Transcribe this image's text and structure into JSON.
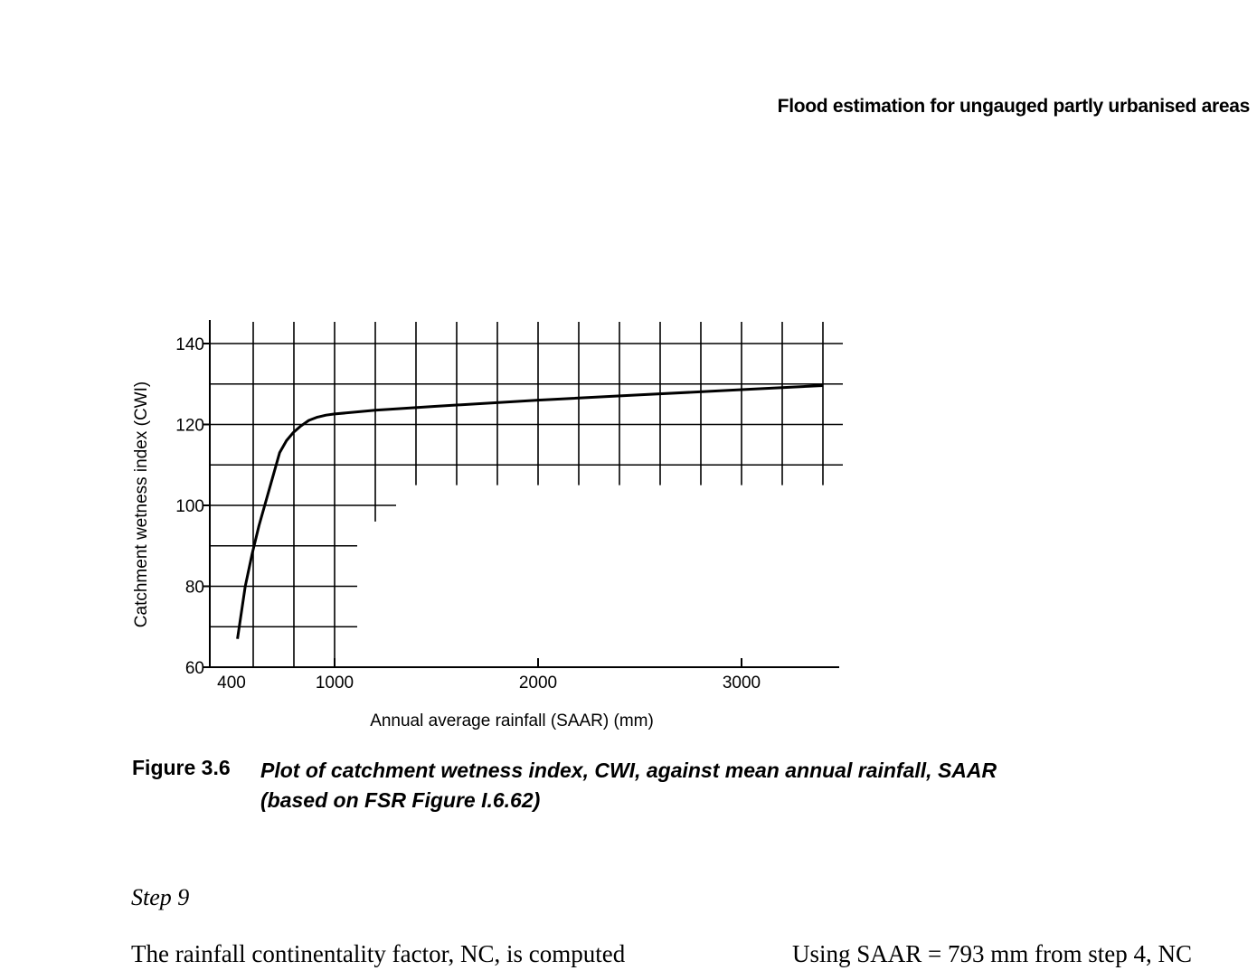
{
  "page": {
    "running_header": "Flood estimation for ungauged partly urbanised areas"
  },
  "figure": {
    "label": "Figure 3.6",
    "caption_line1": "Plot of catchment wetness index, CWI, against mean annual rainfall, SAAR",
    "caption_line2": "(based on FSR Figure I.6.62)"
  },
  "chart_data": {
    "type": "line",
    "title": "",
    "xlabel": "Annual average rainfall (SAAR) (mm)",
    "ylabel": "Catchment wetness index (CWI)",
    "xlim": [
      400,
      3500
    ],
    "ylim": [
      60,
      140
    ],
    "x_ticks": [
      400,
      1000,
      2000,
      3000
    ],
    "y_ticks": [
      60,
      80,
      100,
      120,
      140
    ],
    "grid": "on",
    "legend": "none",
    "series": [
      {
        "x": [
          435,
          480,
          520,
          560,
          600,
          640,
          680,
          720,
          760,
          800,
          850,
          900,
          950,
          1000,
          1200,
          1500,
          2000,
          2500,
          3000,
          3400
        ],
        "y": [
          67,
          80,
          88,
          95,
          101,
          107,
          113,
          116,
          118,
          119.5,
          121,
          121.8,
          122.3,
          122.6,
          123.5,
          124.5,
          126,
          127.3,
          128.6,
          129.6
        ]
      }
    ]
  },
  "text": {
    "step_heading": "Step 9",
    "body_left": "The rainfall continentality factor, NC, is computed",
    "body_right": "Using SAAR = 793 mm from step 4, NC"
  }
}
